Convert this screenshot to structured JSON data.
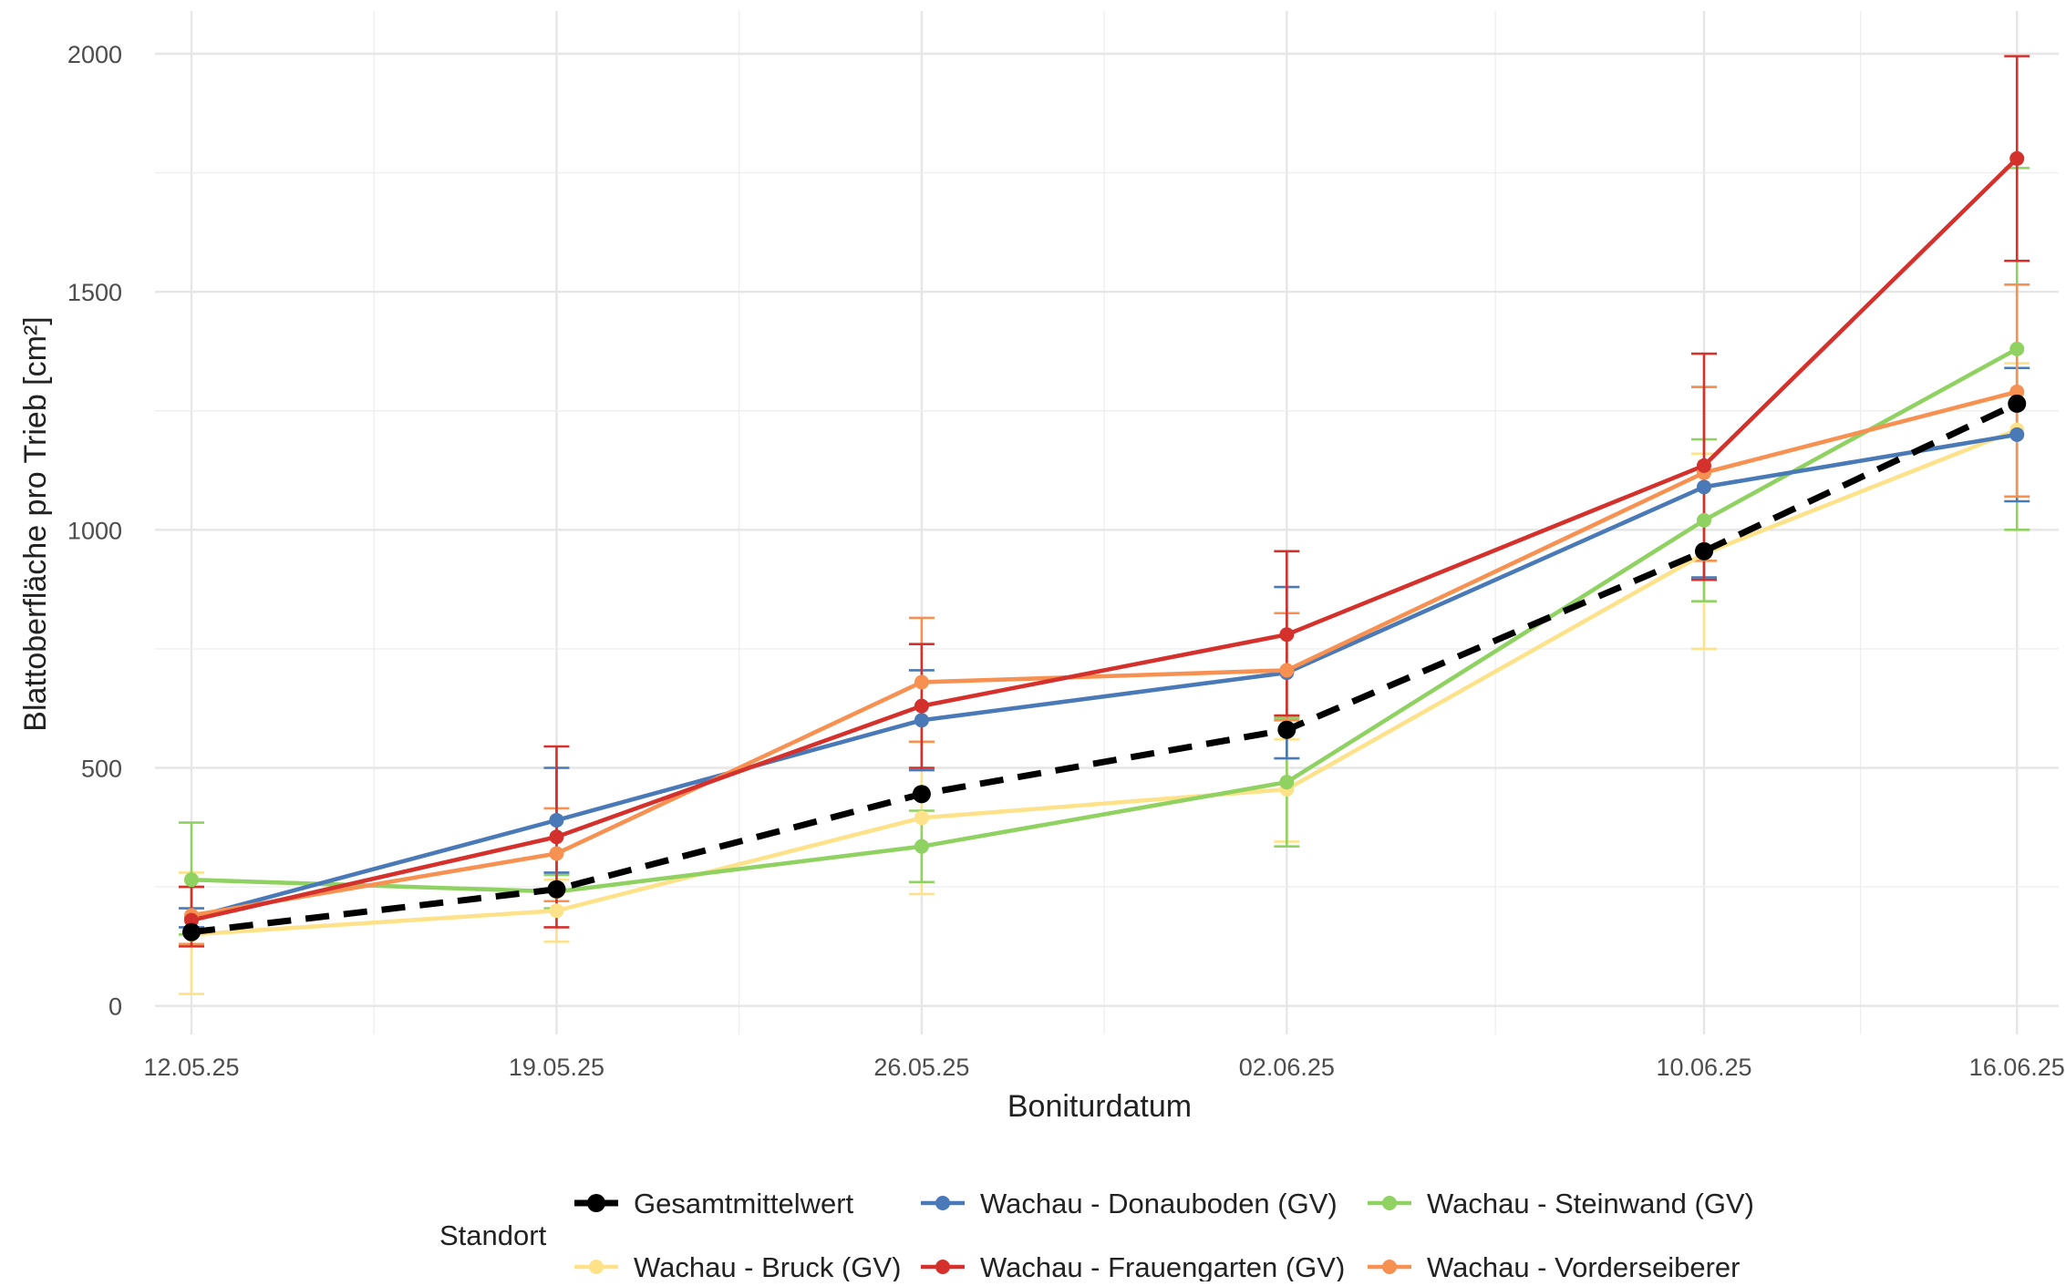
{
  "chart_data": {
    "type": "line",
    "title": "",
    "xlabel": "Boniturdatum",
    "ylabel": "Blattoberfläche pro Trieb [cm²]",
    "x": [
      "12.05.25",
      "19.05.25",
      "26.05.25",
      "02.06.25",
      "10.06.25",
      "16.06.25"
    ],
    "x_days": [
      0,
      7,
      14,
      21,
      29,
      35
    ],
    "ylim": [
      -60,
      2090
    ],
    "yticks": [
      0,
      500,
      1000,
      1500,
      2000
    ],
    "grid": true,
    "legend_title": "Standort",
    "legend_position": "bottom",
    "series": [
      {
        "name": "Wachau - Bruck (GV)",
        "color": "#fde28a",
        "dashed": false,
        "values": [
          150,
          200,
          395,
          455,
          950,
          1210
        ],
        "err_low": [
          25,
          135,
          235,
          345,
          750,
          1070
        ],
        "err_high": [
          280,
          265,
          555,
          560,
          1160,
          1350
        ]
      },
      {
        "name": "Wachau - Steinwand (GV)",
        "color": "#90d262",
        "dashed": false,
        "values": [
          265,
          240,
          335,
          470,
          1020,
          1380
        ],
        "err_low": [
          150,
          205,
          260,
          335,
          850,
          1000
        ],
        "err_high": [
          385,
          275,
          410,
          605,
          1190,
          1760
        ]
      },
      {
        "name": "Wachau - Donauboden (GV)",
        "color": "#4a79b7",
        "dashed": false,
        "values": [
          185,
          390,
          600,
          700,
          1090,
          1200
        ],
        "err_low": [
          165,
          280,
          495,
          520,
          900,
          1060
        ],
        "err_high": [
          205,
          500,
          705,
          880,
          1300,
          1340
        ]
      },
      {
        "name": "Wachau - Vorderseiberer",
        "color": "#f79152",
        "dashed": false,
        "values": [
          190,
          320,
          680,
          705,
          1120,
          1290
        ],
        "err_low": [
          130,
          220,
          555,
          600,
          935,
          1070
        ],
        "err_high": [
          250,
          415,
          815,
          825,
          1300,
          1515
        ]
      },
      {
        "name": "Wachau - Frauengarten (GV)",
        "color": "#d5312c",
        "dashed": false,
        "values": [
          180,
          355,
          630,
          780,
          1135,
          1780
        ],
        "err_low": [
          125,
          165,
          500,
          610,
          895,
          1565
        ],
        "err_high": [
          250,
          545,
          760,
          955,
          1370,
          1995
        ]
      },
      {
        "name": "Gesamtmittelwert",
        "color": "#000000",
        "dashed": true,
        "values": [
          155,
          245,
          445,
          580,
          955,
          1265
        ]
      }
    ]
  },
  "legend": {
    "title": "Standort",
    "rows": [
      [
        "Gesamtmittelwert",
        "Wachau - Donauboden (GV)",
        "Wachau - Steinwand (GV)"
      ],
      [
        "Wachau - Bruck (GV)",
        "Wachau - Frauengarten (GV)",
        "Wachau - Vorderseiberer"
      ]
    ]
  }
}
